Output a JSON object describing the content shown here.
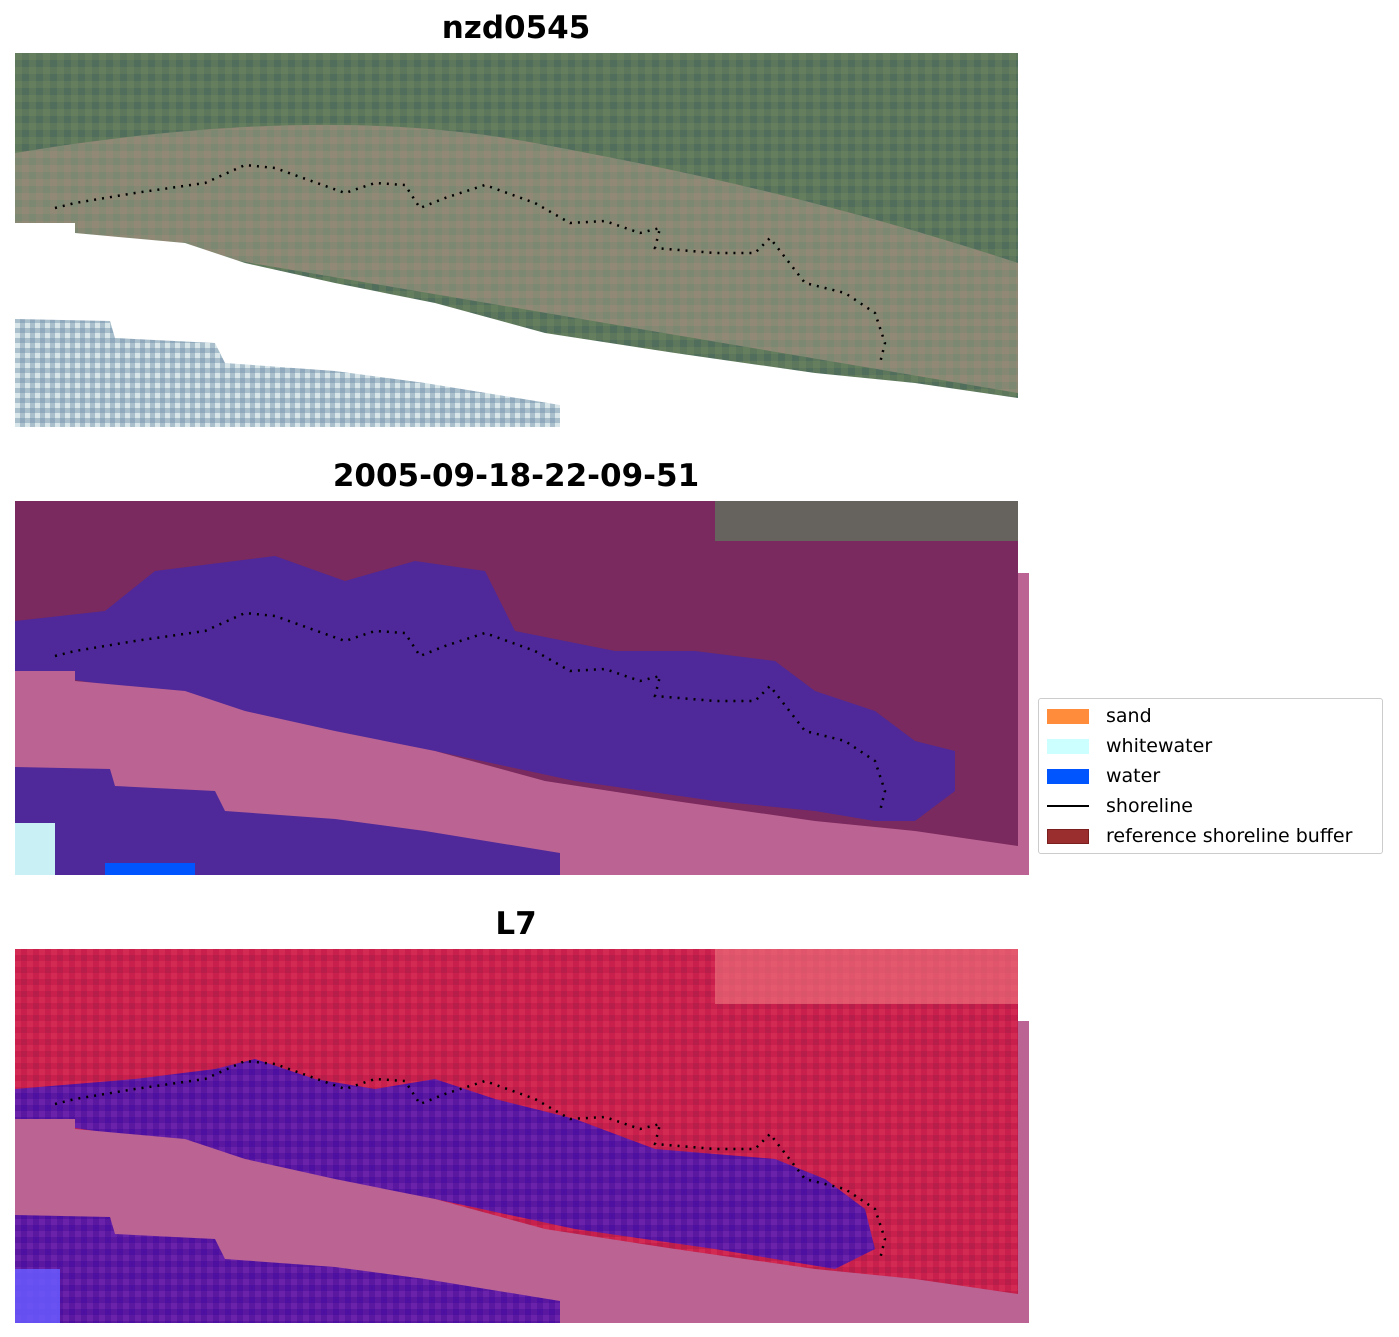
{
  "panels": [
    {
      "title": "nzd0545"
    },
    {
      "title": "2005-09-18-22-09-51"
    },
    {
      "title": "L7"
    }
  ],
  "legend": {
    "items": [
      {
        "label": "sand",
        "color": "#ff8c3a",
        "kind": "patch"
      },
      {
        "label": "whitewater",
        "color": "#ccffff",
        "kind": "patch"
      },
      {
        "label": "water",
        "color": "#0055ff",
        "kind": "patch"
      },
      {
        "label": "shoreline",
        "color": "#000000",
        "kind": "line"
      },
      {
        "label": "reference shoreline buffer",
        "color": "#9a2e2e",
        "kind": "patch"
      }
    ]
  },
  "colors": {
    "rgb_land": "#5e7a5e",
    "rgb_beach": "#8c8a78",
    "nodata": "#ffffff",
    "buffer_overlay": "#7a2a5e",
    "water_class": "#4e2898",
    "pink_mask": "#bb6393",
    "ndwi_land": "#c8204a",
    "ndwi_water": "#5a14a4"
  }
}
